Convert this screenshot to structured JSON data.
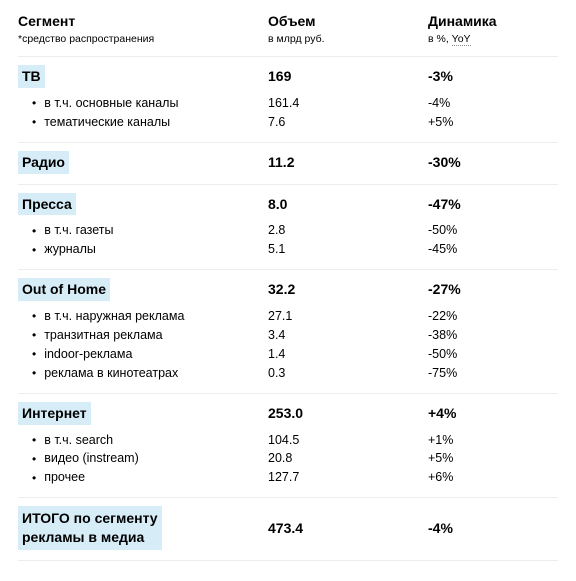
{
  "header": {
    "segment": {
      "title": "Сегмент",
      "sub": "*средство распространения"
    },
    "volume": {
      "title": "Объем",
      "sub": "в млрд руб."
    },
    "dynamics": {
      "title": "Динамика",
      "sub_prefix": "в %, ",
      "sub_link": "YoY"
    }
  },
  "segments": [
    {
      "name": "ТВ",
      "volume": "169",
      "dynamics": "-3%",
      "items": [
        {
          "label": "в т.ч. основные каналы",
          "volume": "161.4",
          "dynamics": "-4%"
        },
        {
          "label": "тематические каналы",
          "volume": "7.6",
          "dynamics": "+5%"
        }
      ]
    },
    {
      "name": "Радио",
      "volume": "11.2",
      "dynamics": "-30%",
      "items": []
    },
    {
      "name": "Пресса",
      "volume": "8.0",
      "dynamics": "-47%",
      "items": [
        {
          "label": "в т.ч. газеты",
          "volume": "2.8",
          "dynamics": "-50%"
        },
        {
          "label": "журналы",
          "volume": "5.1",
          "dynamics": "-45%"
        }
      ]
    },
    {
      "name": "Out of Home",
      "volume": "32.2",
      "dynamics": "-27%",
      "items": [
        {
          "label": "в т.ч. наружная реклама",
          "volume": "27.1",
          "dynamics": "-22%"
        },
        {
          "label": "транзитная реклама",
          "volume": "3.4",
          "dynamics": "-38%"
        },
        {
          "label": "indoor-реклама",
          "volume": "1.4",
          "dynamics": "-50%"
        },
        {
          "label": "реклама в кинотеатрах",
          "volume": "0.3",
          "dynamics": "-75%"
        }
      ]
    },
    {
      "name": "Интернет",
      "volume": "253.0",
      "dynamics": "+4%",
      "items": [
        {
          "label": "в т.ч. search",
          "volume": "104.5",
          "dynamics": "+1%"
        },
        {
          "label": "видео (instream)",
          "volume": "20.8",
          "dynamics": "+5%"
        },
        {
          "label": "прочее",
          "volume": "127.7",
          "dynamics": "+6%"
        }
      ]
    }
  ],
  "total": {
    "name_line1": "ИТОГО по сегменту",
    "name_line2": "рекламы в медиа",
    "volume": "473.4",
    "dynamics": "-4%"
  },
  "style": {
    "highlight_bg": "#d6ecf7",
    "sep_color": "#ededed",
    "font_main": 13,
    "font_header": 14,
    "font_sub": 12.5
  }
}
